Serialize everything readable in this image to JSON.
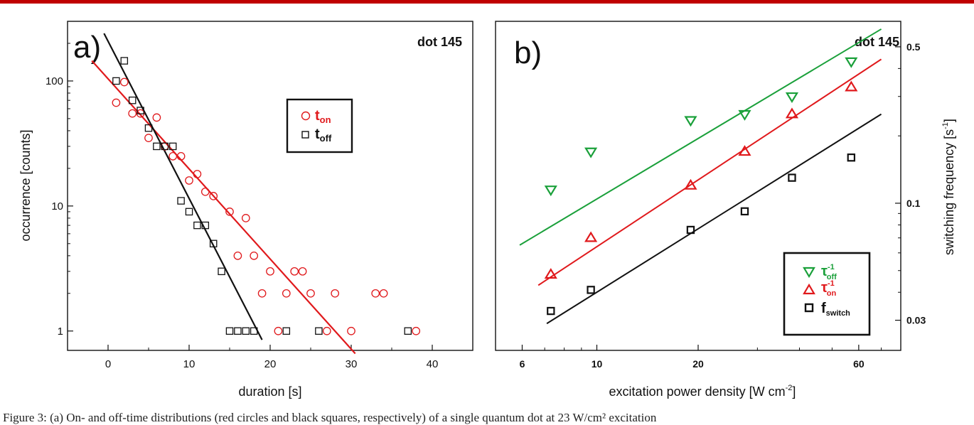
{
  "caption": "Figure 3: (a) On- and off-time distributions (red circles and black squares, respectively) of a single quantum dot at 23 W/cm² excitation",
  "chart_data": [
    {
      "type": "scatter",
      "panel": "a)",
      "annotation": "dot 145",
      "xlabel": "duration [s]",
      "ylabel": "occurrence [counts]",
      "xlim": [
        -5,
        45
      ],
      "ylim": [
        0.7,
        300
      ],
      "yscale": "log",
      "xticks": [
        0,
        10,
        20,
        30,
        40
      ],
      "yticks": [
        1,
        10,
        100
      ],
      "grid": false,
      "legend_position": "center-right",
      "series": [
        {
          "legend_main": "t",
          "legend_sub": "on",
          "marker": "circle",
          "color": "#e0191c",
          "x": [
            1,
            2,
            3,
            4,
            5,
            6,
            7,
            8,
            9,
            10,
            11,
            12,
            13,
            15,
            16,
            17,
            18,
            19,
            20,
            21,
            22,
            23,
            24,
            25,
            27,
            28,
            30,
            33,
            34,
            38
          ],
          "y": [
            67,
            98,
            55,
            55,
            35,
            51,
            30,
            25,
            25,
            16,
            18,
            13,
            12,
            9,
            4,
            8,
            4,
            2,
            3,
            1,
            2,
            3,
            3,
            2,
            1,
            2,
            1,
            2,
            2,
            1
          ],
          "fit": {
            "x": [
              -2,
              30.5
            ],
            "y": [
              145,
              0.66
            ]
          }
        },
        {
          "legend_main": "t",
          "legend_sub": "off",
          "marker": "square",
          "color": "#111111",
          "x": [
            1,
            2,
            3,
            4,
            5,
            6,
            7,
            8,
            9,
            10,
            11,
            12,
            13,
            14,
            15,
            16,
            17,
            18,
            22,
            26,
            37
          ],
          "y": [
            100,
            145,
            70,
            58,
            42,
            30,
            30,
            30,
            11,
            9,
            7,
            7,
            5,
            3,
            1,
            1,
            1,
            1,
            1,
            1,
            1
          ],
          "fit": {
            "x": [
              -0.5,
              19
            ],
            "y": [
              240,
              0.85
            ]
          }
        }
      ]
    },
    {
      "type": "scatter",
      "panel": "b)",
      "annotation": "dot 145",
      "xlabel": "excitation power density [W cm",
      "xlabel_sup": "-2",
      "xlabel_end": "]",
      "ylabel": "switching frequency [s",
      "ylabel_sup": "-1",
      "ylabel_end": "]",
      "xscale": "log",
      "yscale": "log",
      "xlim": [
        5,
        80
      ],
      "ylim": [
        0.022,
        0.65
      ],
      "xticks": [
        6,
        10,
        20,
        60
      ],
      "xtick_labels": [
        "6",
        "10",
        "20",
        "60"
      ],
      "yticks": [
        0.03,
        0.1,
        0.5
      ],
      "ytick_labels": [
        "0.03",
        "0.1",
        "0.5"
      ],
      "grid": false,
      "legend_position": "bottom-right",
      "series": [
        {
          "legend_main": "τ",
          "legend_sup": "-1",
          "legend_sub": "off",
          "marker": "triangle-down",
          "color": "#1aa03a",
          "x": [
            7.3,
            9.6,
            19,
            27.5,
            38,
            57
          ],
          "y": [
            0.115,
            0.17,
            0.235,
            0.25,
            0.3,
            0.43
          ],
          "fit": {
            "x": [
              5.9,
              70
            ],
            "y": [
              0.065,
              0.6
            ]
          }
        },
        {
          "legend_main": "τ",
          "legend_sup": "-1",
          "legend_sub": "on",
          "marker": "triangle-up",
          "color": "#e0191c",
          "x": [
            7.3,
            9.6,
            19,
            27.5,
            38,
            57
          ],
          "y": [
            0.048,
            0.07,
            0.12,
            0.17,
            0.25,
            0.33
          ],
          "fit": {
            "x": [
              6.7,
              70
            ],
            "y": [
              0.043,
              0.44
            ]
          }
        },
        {
          "legend_main": "f",
          "legend_sub": "switch",
          "marker": "square",
          "color": "#111111",
          "x": [
            7.3,
            9.6,
            19,
            27.5,
            38,
            57
          ],
          "y": [
            0.033,
            0.041,
            0.076,
            0.092,
            0.13,
            0.16
          ],
          "fit": {
            "x": [
              7.1,
              70
            ],
            "y": [
              0.029,
              0.25
            ]
          }
        }
      ]
    }
  ]
}
